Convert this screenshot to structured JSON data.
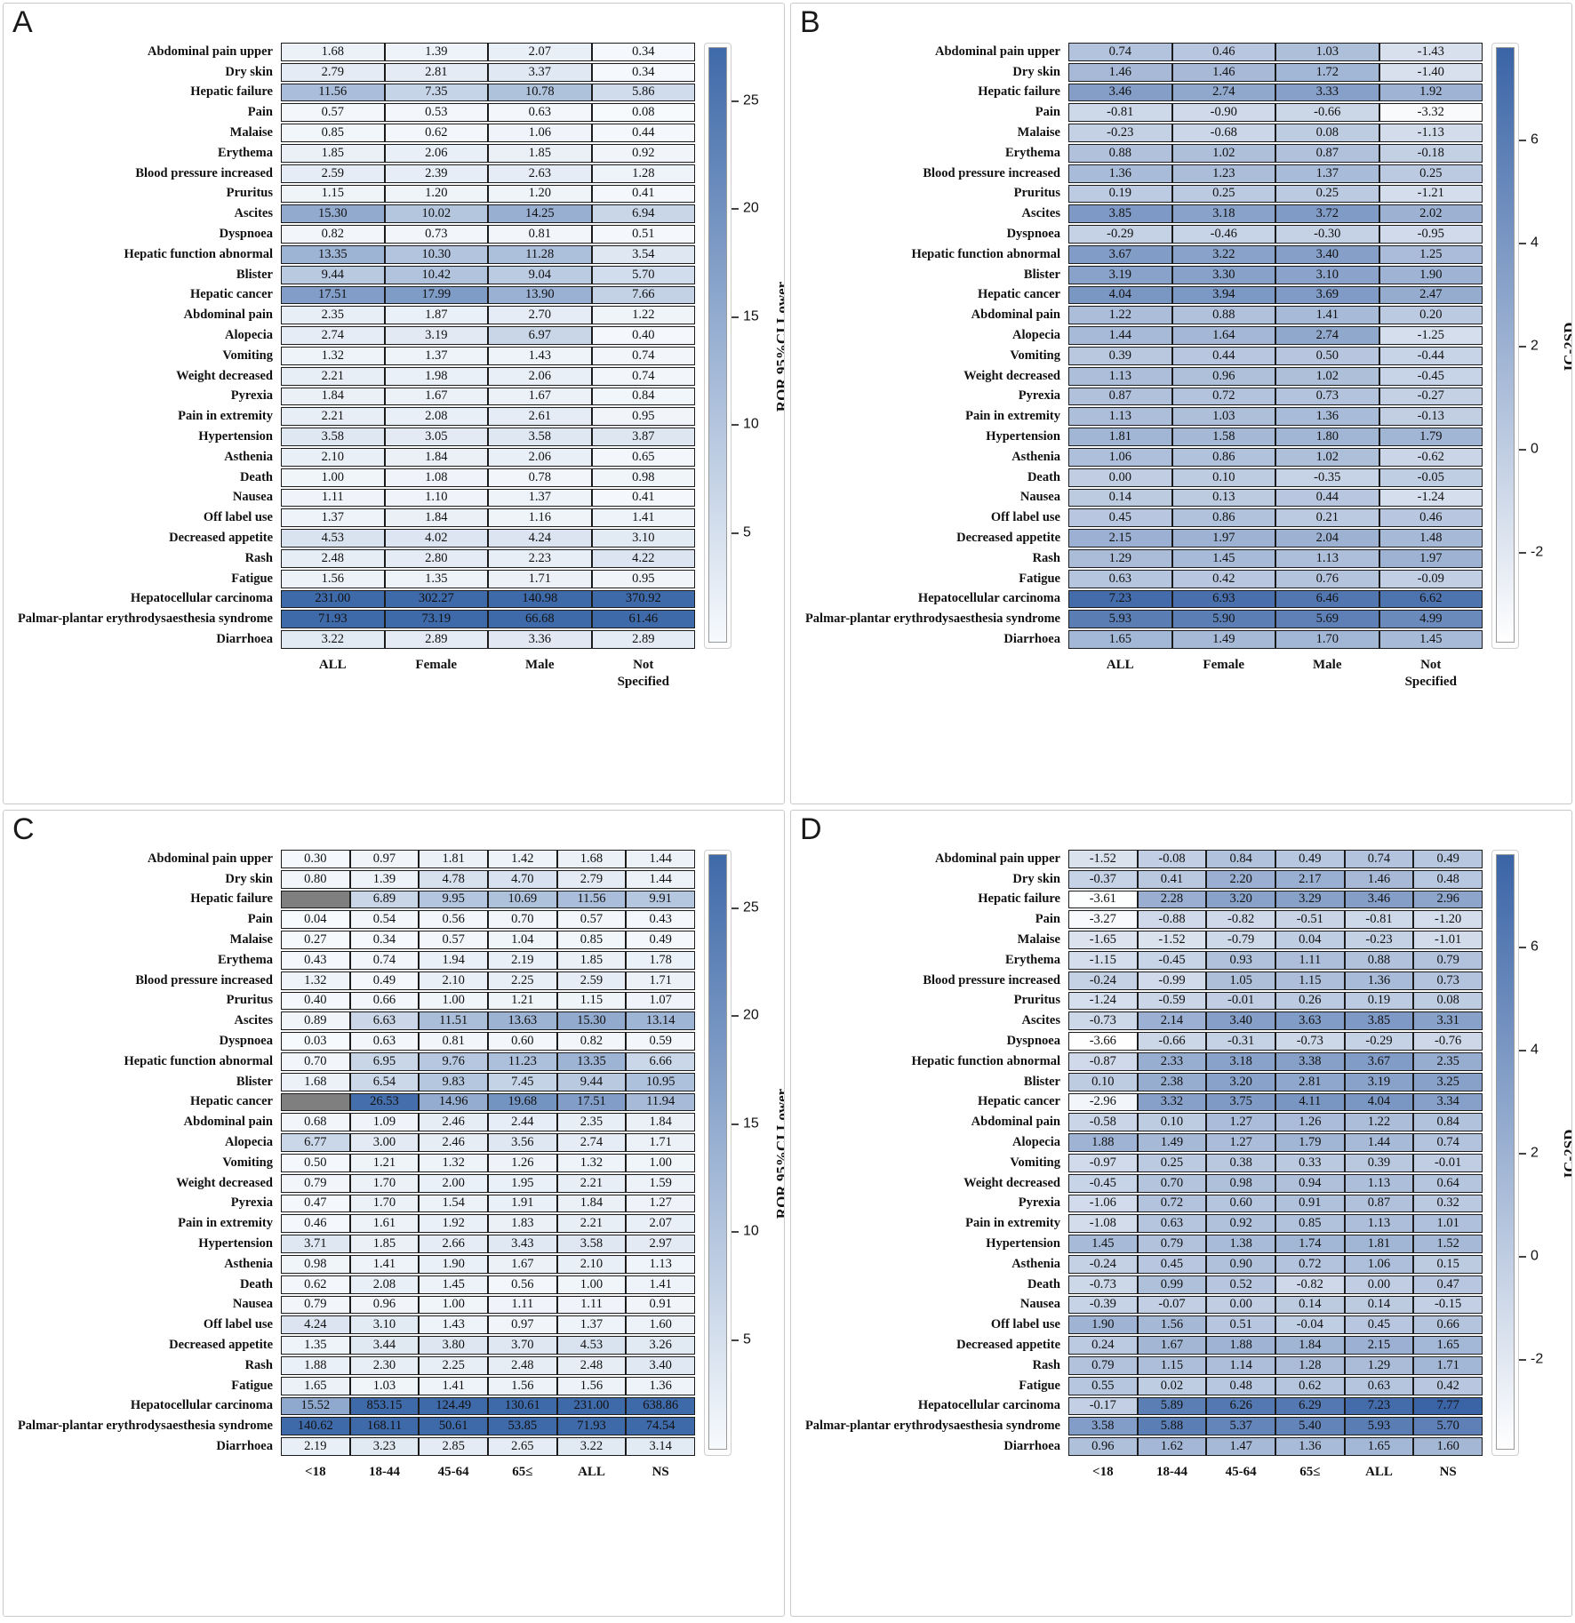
{
  "figure": {
    "background": "#ffffff",
    "panel_border": "#c9c9c9"
  },
  "colors": {
    "missing": "#7f7f7f",
    "cell_border": "#1c1c1c"
  },
  "row_labels": [
    "Abdominal pain upper",
    "Dry skin",
    "Hepatic failure",
    "Pain",
    "Malaise",
    "Erythema",
    "Blood pressure increased",
    "Pruritus",
    "Ascites",
    "Dyspnoea",
    "Hepatic function abnormal",
    "Blister",
    "Hepatic cancer",
    "Abdominal pain",
    "Alopecia",
    "Vomiting",
    "Weight decreased",
    "Pyrexia",
    "Pain in extremity",
    "Hypertension",
    "Asthenia",
    "Death",
    "Nausea",
    "Off label use",
    "Decreased appetite",
    "Rash",
    "Fatigue",
    "Hepatocellular carcinoma",
    "Palmar-plantar erythrodysaesthesia syndrome",
    "Diarrhoea"
  ],
  "chart_data": [
    {
      "type": "heatmap",
      "panel": "A",
      "colorbar_label": "ROR 95%CI Lower",
      "colorbar_ticks": [
        "25",
        "20",
        "15",
        "10",
        "5"
      ],
      "scale_min": 0,
      "scale_max": 27.5,
      "color_low": "#f7fafd",
      "color_high": "#3f6aa9",
      "columns": [
        "ALL",
        "Female",
        "Male",
        "Not\nSpecified"
      ],
      "values": [
        [
          "1.68",
          "1.39",
          "2.07",
          "0.34"
        ],
        [
          "2.79",
          "2.81",
          "3.37",
          "0.34"
        ],
        [
          "11.56",
          "7.35",
          "10.78",
          "5.86"
        ],
        [
          "0.57",
          "0.53",
          "0.63",
          "0.08"
        ],
        [
          "0.85",
          "0.62",
          "1.06",
          "0.44"
        ],
        [
          "1.85",
          "2.06",
          "1.85",
          "0.92"
        ],
        [
          "2.59",
          "2.39",
          "2.63",
          "1.28"
        ],
        [
          "1.15",
          "1.20",
          "1.20",
          "0.41"
        ],
        [
          "15.30",
          "10.02",
          "14.25",
          "6.94"
        ],
        [
          "0.82",
          "0.73",
          "0.81",
          "0.51"
        ],
        [
          "13.35",
          "10.30",
          "11.28",
          "3.54"
        ],
        [
          "9.44",
          "10.42",
          "9.04",
          "5.70"
        ],
        [
          "17.51",
          "17.99",
          "13.90",
          "7.66"
        ],
        [
          "2.35",
          "1.87",
          "2.70",
          "1.22"
        ],
        [
          "2.74",
          "3.19",
          "6.97",
          "0.40"
        ],
        [
          "1.32",
          "1.37",
          "1.43",
          "0.74"
        ],
        [
          "2.21",
          "1.98",
          "2.06",
          "0.74"
        ],
        [
          "1.84",
          "1.67",
          "1.67",
          "0.84"
        ],
        [
          "2.21",
          "2.08",
          "2.61",
          "0.95"
        ],
        [
          "3.58",
          "3.05",
          "3.58",
          "3.87"
        ],
        [
          "2.10",
          "1.84",
          "2.06",
          "0.65"
        ],
        [
          "1.00",
          "1.08",
          "0.78",
          "0.98"
        ],
        [
          "1.11",
          "1.10",
          "1.37",
          "0.41"
        ],
        [
          "1.37",
          "1.84",
          "1.16",
          "1.41"
        ],
        [
          "4.53",
          "4.02",
          "4.24",
          "3.10"
        ],
        [
          "2.48",
          "2.80",
          "2.23",
          "4.22"
        ],
        [
          "1.56",
          "1.35",
          "1.71",
          "0.95"
        ],
        [
          "231.00",
          "302.27",
          "140.98",
          "370.92"
        ],
        [
          "71.93",
          "73.19",
          "66.68",
          "61.46"
        ],
        [
          "3.22",
          "2.89",
          "3.36",
          "2.89"
        ]
      ]
    },
    {
      "type": "heatmap",
      "panel": "B",
      "colorbar_label": "IC-2SD",
      "colorbar_ticks": [
        "6",
        "4",
        "2",
        "0",
        "-2"
      ],
      "scale_min": -3.7,
      "scale_max": 7.8,
      "color_low": "#ffffff",
      "color_high": "#3a64a6",
      "columns": [
        "ALL",
        "Female",
        "Male",
        "Not\nSpecified"
      ],
      "values": [
        [
          "0.74",
          "0.46",
          "1.03",
          "-1.43"
        ],
        [
          "1.46",
          "1.46",
          "1.72",
          "-1.40"
        ],
        [
          "3.46",
          "2.74",
          "3.33",
          "1.92"
        ],
        [
          "-0.81",
          "-0.90",
          "-0.66",
          "-3.32"
        ],
        [
          "-0.23",
          "-0.68",
          "0.08",
          "-1.13"
        ],
        [
          "0.88",
          "1.02",
          "0.87",
          "-0.18"
        ],
        [
          "1.36",
          "1.23",
          "1.37",
          "0.25"
        ],
        [
          "0.19",
          "0.25",
          "0.25",
          "-1.21"
        ],
        [
          "3.85",
          "3.18",
          "3.72",
          "2.02"
        ],
        [
          "-0.29",
          "-0.46",
          "-0.30",
          "-0.95"
        ],
        [
          "3.67",
          "3.22",
          "3.40",
          "1.25"
        ],
        [
          "3.19",
          "3.30",
          "3.10",
          "1.90"
        ],
        [
          "4.04",
          "3.94",
          "3.69",
          "2.47"
        ],
        [
          "1.22",
          "0.88",
          "1.41",
          "0.20"
        ],
        [
          "1.44",
          "1.64",
          "2.74",
          "-1.25"
        ],
        [
          "0.39",
          "0.44",
          "0.50",
          "-0.44"
        ],
        [
          "1.13",
          "0.96",
          "1.02",
          "-0.45"
        ],
        [
          "0.87",
          "0.72",
          "0.73",
          "-0.27"
        ],
        [
          "1.13",
          "1.03",
          "1.36",
          "-0.13"
        ],
        [
          "1.81",
          "1.58",
          "1.80",
          "1.79"
        ],
        [
          "1.06",
          "0.86",
          "1.02",
          "-0.62"
        ],
        [
          "0.00",
          "0.10",
          "-0.35",
          "-0.05"
        ],
        [
          "0.14",
          "0.13",
          "0.44",
          "-1.24"
        ],
        [
          "0.45",
          "0.86",
          "0.21",
          "0.46"
        ],
        [
          "2.15",
          "1.97",
          "2.04",
          "1.48"
        ],
        [
          "1.29",
          "1.45",
          "1.13",
          "1.97"
        ],
        [
          "0.63",
          "0.42",
          "0.76",
          "-0.09"
        ],
        [
          "7.23",
          "6.93",
          "6.46",
          "6.62"
        ],
        [
          "5.93",
          "5.90",
          "5.69",
          "4.99"
        ],
        [
          "1.65",
          "1.49",
          "1.70",
          "1.45"
        ]
      ]
    },
    {
      "type": "heatmap",
      "panel": "C",
      "colorbar_label": "ROR 95%CI Lower",
      "colorbar_ticks": [
        "25",
        "20",
        "15",
        "10",
        "5"
      ],
      "scale_min": 0,
      "scale_max": 27.5,
      "color_low": "#f7fafd",
      "color_high": "#3f6aa9",
      "columns": [
        "<18",
        "18-44",
        "45-64",
        "65≤",
        "ALL",
        "NS"
      ],
      "values": [
        [
          "0.30",
          "0.97",
          "1.81",
          "1.42",
          "1.68",
          "1.44"
        ],
        [
          "0.80",
          "1.39",
          "4.78",
          "4.70",
          "2.79",
          "1.44"
        ],
        [
          null,
          "6.89",
          "9.95",
          "10.69",
          "11.56",
          "9.91"
        ],
        [
          "0.04",
          "0.54",
          "0.56",
          "0.70",
          "0.57",
          "0.43"
        ],
        [
          "0.27",
          "0.34",
          "0.57",
          "1.04",
          "0.85",
          "0.49"
        ],
        [
          "0.43",
          "0.74",
          "1.94",
          "2.19",
          "1.85",
          "1.78"
        ],
        [
          "1.32",
          "0.49",
          "2.10",
          "2.25",
          "2.59",
          "1.71"
        ],
        [
          "0.40",
          "0.66",
          "1.00",
          "1.21",
          "1.15",
          "1.07"
        ],
        [
          "0.89",
          "6.63",
          "11.51",
          "13.63",
          "15.30",
          "13.14"
        ],
        [
          "0.03",
          "0.63",
          "0.81",
          "0.60",
          "0.82",
          "0.59"
        ],
        [
          "0.70",
          "6.95",
          "9.76",
          "11.23",
          "13.35",
          "6.66"
        ],
        [
          "1.68",
          "6.54",
          "9.83",
          "7.45",
          "9.44",
          "10.95"
        ],
        [
          null,
          "26.53",
          "14.96",
          "19.68",
          "17.51",
          "11.94"
        ],
        [
          "0.68",
          "1.09",
          "2.46",
          "2.44",
          "2.35",
          "1.84"
        ],
        [
          "6.77",
          "3.00",
          "2.46",
          "3.56",
          "2.74",
          "1.71"
        ],
        [
          "0.50",
          "1.21",
          "1.32",
          "1.26",
          "1.32",
          "1.00"
        ],
        [
          "0.79",
          "1.70",
          "2.00",
          "1.95",
          "2.21",
          "1.59"
        ],
        [
          "0.47",
          "1.70",
          "1.54",
          "1.91",
          "1.84",
          "1.27"
        ],
        [
          "0.46",
          "1.61",
          "1.92",
          "1.83",
          "2.21",
          "2.07"
        ],
        [
          "3.71",
          "1.85",
          "2.66",
          "3.43",
          "3.58",
          "2.97"
        ],
        [
          "0.98",
          "1.41",
          "1.90",
          "1.67",
          "2.10",
          "1.13"
        ],
        [
          "0.62",
          "2.08",
          "1.45",
          "0.56",
          "1.00",
          "1.41"
        ],
        [
          "0.79",
          "0.96",
          "1.00",
          "1.11",
          "1.11",
          "0.91"
        ],
        [
          "4.24",
          "3.10",
          "1.43",
          "0.97",
          "1.37",
          "1.60"
        ],
        [
          "1.35",
          "3.44",
          "3.80",
          "3.70",
          "4.53",
          "3.26"
        ],
        [
          "1.88",
          "2.30",
          "2.25",
          "2.48",
          "2.48",
          "3.40"
        ],
        [
          "1.65",
          "1.03",
          "1.41",
          "1.56",
          "1.56",
          "1.36"
        ],
        [
          "15.52",
          "853.15",
          "124.49",
          "130.61",
          "231.00",
          "638.86"
        ],
        [
          "140.62",
          "168.11",
          "50.61",
          "53.85",
          "71.93",
          "74.54"
        ],
        [
          "2.19",
          "3.23",
          "2.85",
          "2.65",
          "3.22",
          "3.14"
        ]
      ]
    },
    {
      "type": "heatmap",
      "panel": "D",
      "colorbar_label": "IC-2SD",
      "colorbar_ticks": [
        "6",
        "4",
        "2",
        "0",
        "-2"
      ],
      "scale_min": -3.7,
      "scale_max": 7.8,
      "color_low": "#ffffff",
      "color_high": "#3a64a6",
      "columns": [
        "<18",
        "18-44",
        "45-64",
        "65≤",
        "ALL",
        "NS"
      ],
      "values": [
        [
          "-1.52",
          "-0.08",
          "0.84",
          "0.49",
          "0.74",
          "0.49"
        ],
        [
          "-0.37",
          "0.41",
          "2.20",
          "2.17",
          "1.46",
          "0.48"
        ],
        [
          "-3.61",
          "2.28",
          "3.20",
          "3.29",
          "3.46",
          "2.96"
        ],
        [
          "-3.27",
          "-0.88",
          "-0.82",
          "-0.51",
          "-0.81",
          "-1.20"
        ],
        [
          "-1.65",
          "-1.52",
          "-0.79",
          "0.04",
          "-0.23",
          "-1.01"
        ],
        [
          "-1.15",
          "-0.45",
          "0.93",
          "1.11",
          "0.88",
          "0.79"
        ],
        [
          "-0.24",
          "-0.99",
          "1.05",
          "1.15",
          "1.36",
          "0.73"
        ],
        [
          "-1.24",
          "-0.59",
          "-0.01",
          "0.26",
          "0.19",
          "0.08"
        ],
        [
          "-0.73",
          "2.14",
          "3.40",
          "3.63",
          "3.85",
          "3.31"
        ],
        [
          "-3.66",
          "-0.66",
          "-0.31",
          "-0.73",
          "-0.29",
          "-0.76"
        ],
        [
          "-0.87",
          "2.33",
          "3.18",
          "3.38",
          "3.67",
          "2.35"
        ],
        [
          "0.10",
          "2.38",
          "3.20",
          "2.81",
          "3.19",
          "3.25"
        ],
        [
          "-2.96",
          "3.32",
          "3.75",
          "4.11",
          "4.04",
          "3.34"
        ],
        [
          "-0.58",
          "0.10",
          "1.27",
          "1.26",
          "1.22",
          "0.84"
        ],
        [
          "1.88",
          "1.49",
          "1.27",
          "1.79",
          "1.44",
          "0.74"
        ],
        [
          "-0.97",
          "0.25",
          "0.38",
          "0.33",
          "0.39",
          "-0.01"
        ],
        [
          "-0.45",
          "0.70",
          "0.98",
          "0.94",
          "1.13",
          "0.64"
        ],
        [
          "-1.06",
          "0.72",
          "0.60",
          "0.91",
          "0.87",
          "0.32"
        ],
        [
          "-1.08",
          "0.63",
          "0.92",
          "0.85",
          "1.13",
          "1.01"
        ],
        [
          "1.45",
          "0.79",
          "1.38",
          "1.74",
          "1.81",
          "1.52"
        ],
        [
          "-0.24",
          "0.45",
          "0.90",
          "0.72",
          "1.06",
          "0.15"
        ],
        [
          "-0.73",
          "0.99",
          "0.52",
          "-0.82",
          "0.00",
          "0.47"
        ],
        [
          "-0.39",
          "-0.07",
          "0.00",
          "0.14",
          "0.14",
          "-0.15"
        ],
        [
          "1.90",
          "1.56",
          "0.51",
          "-0.04",
          "0.45",
          "0.66"
        ],
        [
          "0.24",
          "1.67",
          "1.88",
          "1.84",
          "2.15",
          "1.65"
        ],
        [
          "0.79",
          "1.15",
          "1.14",
          "1.28",
          "1.29",
          "1.71"
        ],
        [
          "0.55",
          "0.02",
          "0.48",
          "0.62",
          "0.63",
          "0.42"
        ],
        [
          "-0.17",
          "5.89",
          "6.26",
          "6.29",
          "7.23",
          "7.77"
        ],
        [
          "3.58",
          "5.88",
          "5.37",
          "5.40",
          "5.93",
          "5.70"
        ],
        [
          "0.96",
          "1.62",
          "1.47",
          "1.36",
          "1.65",
          "1.60"
        ]
      ]
    }
  ]
}
